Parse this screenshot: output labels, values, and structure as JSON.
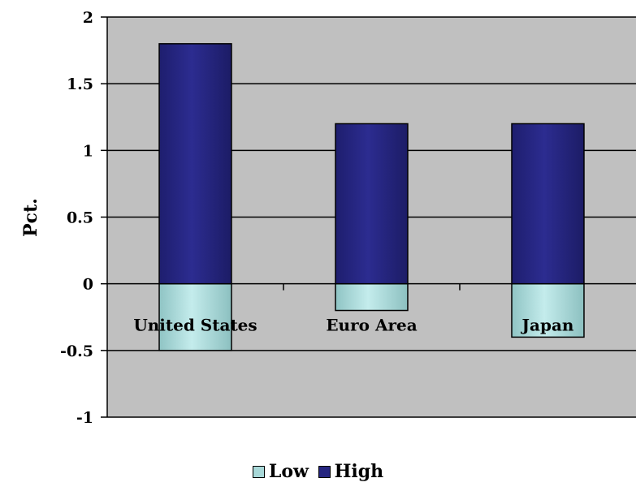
{
  "chart_data": {
    "type": "bar",
    "stacked": true,
    "categories": [
      "United States",
      "Euro Area",
      "Japan"
    ],
    "series": [
      {
        "name": "Low",
        "values": [
          -0.5,
          -0.2,
          -0.4
        ],
        "color": "#a8d8d8"
      },
      {
        "name": "High",
        "values": [
          1.8,
          1.2,
          1.2
        ],
        "color": "#262680"
      }
    ],
    "ylabel": "Pct.",
    "ylim": [
      -1,
      2
    ],
    "yticks": [
      "2",
      "1.5",
      "1",
      "0.5",
      "0",
      "-0.5",
      "-1"
    ],
    "grid": true,
    "plot_background": "#c0c0c0",
    "legend": "bottom"
  }
}
